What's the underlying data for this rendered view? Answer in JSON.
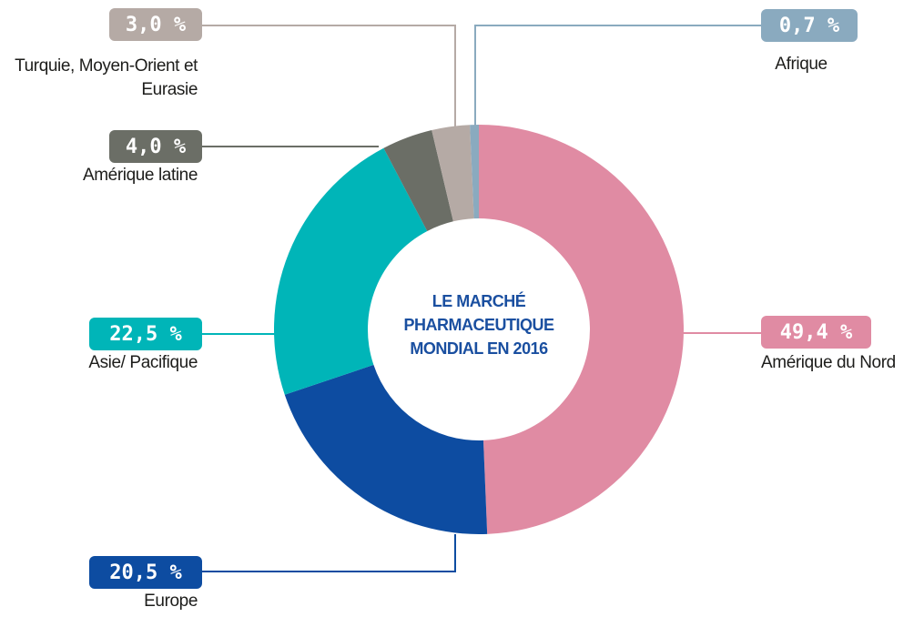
{
  "chart_data": {
    "type": "donut",
    "title": "LE MARCHÉ PHARMACEUTIQUE MONDIAL EN 2016",
    "categories": [
      "Amérique du Nord",
      "Europe",
      "Asie/ Pacifique",
      "Amérique latine",
      "Turquie, Moyen-Orient et Eurasie",
      "Afrique"
    ],
    "values": [
      49.4,
      20.5,
      22.5,
      4.0,
      3.0,
      0.7
    ],
    "value_labels": [
      "49,4 %",
      "20,5 %",
      "22,5 %",
      "4,0 %",
      "3,0 %",
      "0,7 %"
    ],
    "colors": [
      "#e08ba3",
      "#0d4ca1",
      "#00b5b8",
      "#6b6e66",
      "#b5aaa5",
      "#8aaabf"
    ]
  }
}
